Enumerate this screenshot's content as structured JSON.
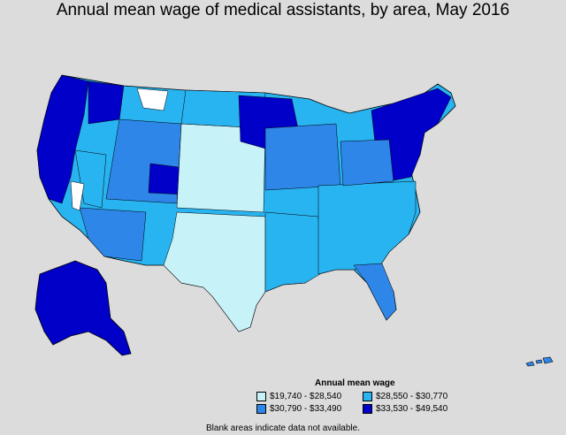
{
  "title": "Annual mean wage of medical assistants, by area, May 2016",
  "legend": {
    "title": "Annual mean wage",
    "items": [
      {
        "label": "$19,740 - $28,540",
        "color": "#c6f2f8"
      },
      {
        "label": "$28,550 - $30,770",
        "color": "#28b4f0"
      },
      {
        "label": "$30,790 - $33,490",
        "color": "#2e86e8"
      },
      {
        "label": "$33,530 - $49,540",
        "color": "#0000c8"
      }
    ]
  },
  "note": "Blank areas indicate data not available."
}
